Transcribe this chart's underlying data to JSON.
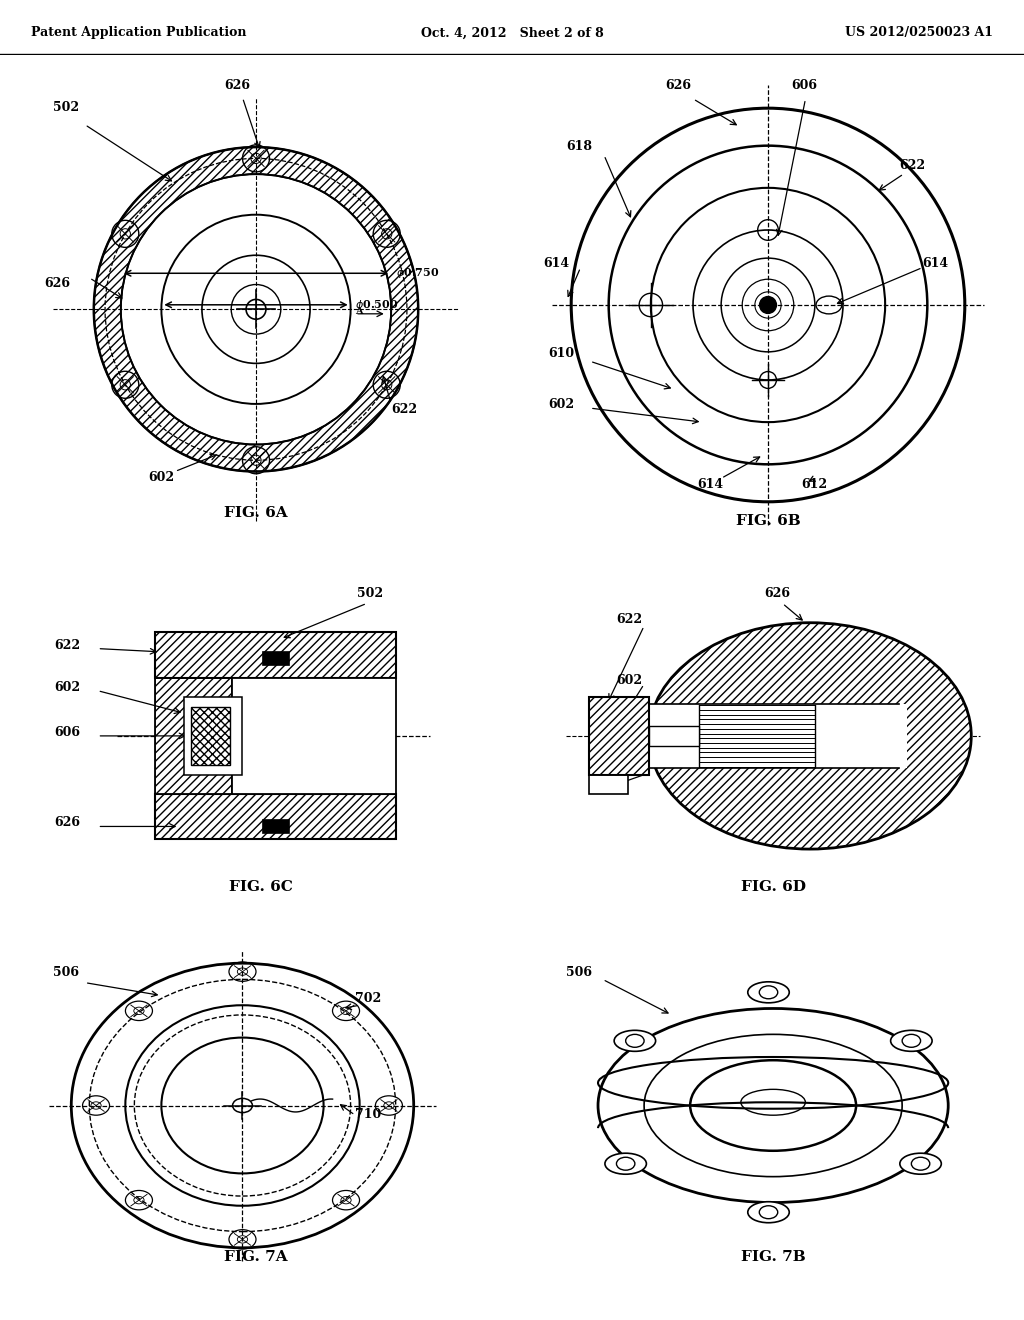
{
  "bg_color": "#ffffff",
  "header": {
    "left": "Patent Application Publication",
    "center": "Oct. 4, 2012   Sheet 2 of 8",
    "right": "US 2012/0250023 A1"
  }
}
